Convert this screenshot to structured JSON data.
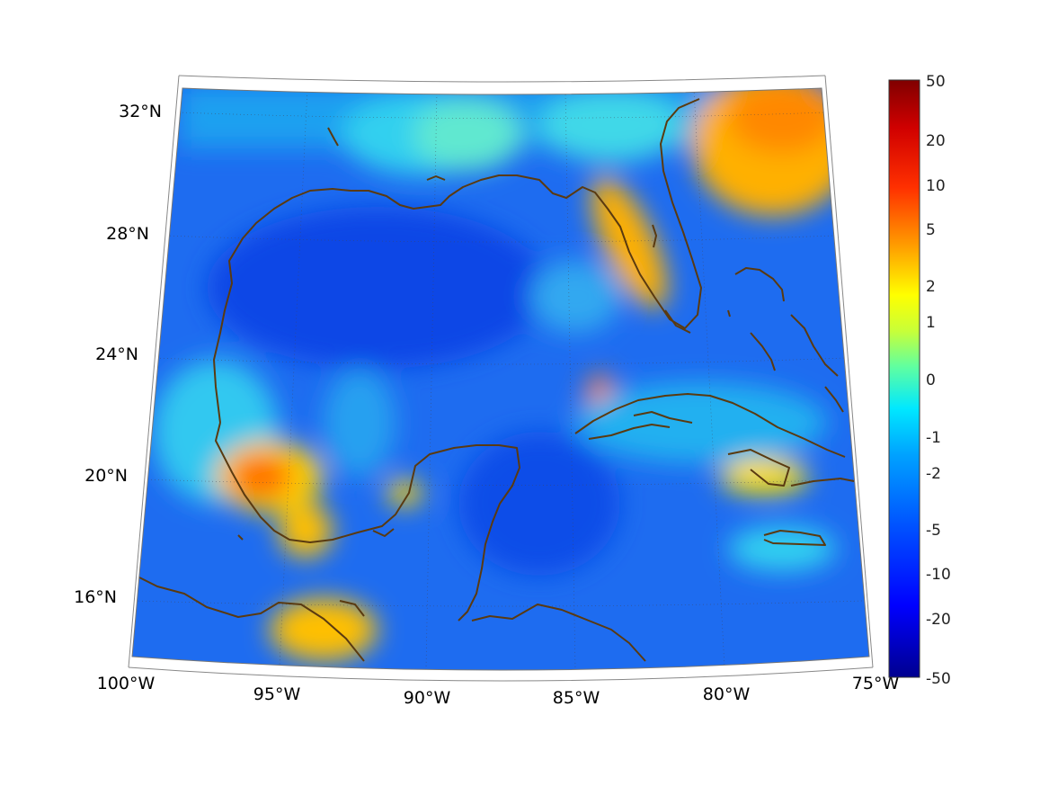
{
  "map": {
    "projection": "conic",
    "lon_range": [
      -100,
      -75
    ],
    "lat_range": [
      14,
      33
    ],
    "field_colormap": "jet",
    "coastline_color": "#5a3a10",
    "graticule_style": "dotted"
  },
  "lat_labels": [
    "32°N",
    "28°N",
    "24°N",
    "20°N",
    "16°N"
  ],
  "lon_labels": [
    "100°W",
    "95°W",
    "90°W",
    "85°W",
    "80°W",
    "75°W"
  ],
  "colorbar": {
    "scale": "symmetric-log",
    "range": [
      -50,
      50
    ],
    "tick_labels": [
      "50",
      "20",
      "10",
      "5",
      "2",
      "1",
      "0",
      "-1",
      "-2",
      "-5",
      "-10",
      "-20",
      "-50"
    ]
  }
}
